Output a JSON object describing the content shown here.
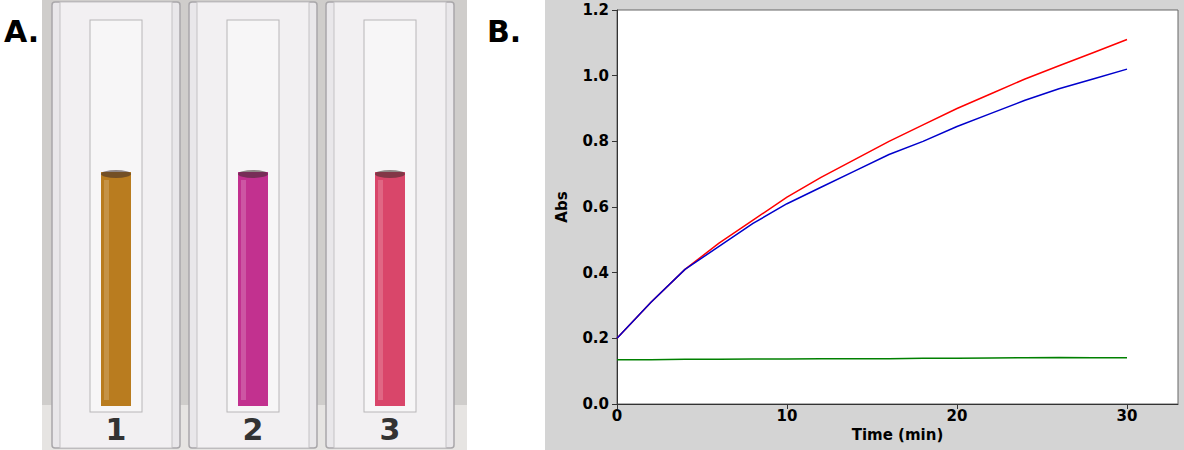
{
  "figure": {
    "panel_a": {
      "letter": "A.",
      "cuvettes": [
        {
          "label": "1",
          "color": "#b97c1f"
        },
        {
          "label": "2",
          "color": "#c2318f"
        },
        {
          "label": "3",
          "color": "#d9466a"
        }
      ]
    },
    "panel_b": {
      "letter": "B."
    }
  },
  "chart_data": {
    "type": "line",
    "x_label": "Time (min)",
    "y_label": "Abs",
    "x": [
      0,
      2,
      4,
      6,
      8,
      10,
      12,
      14,
      16,
      18,
      20,
      22,
      24,
      26,
      28,
      30
    ],
    "series": [
      {
        "color": "#ff0000",
        "values": [
          0.2,
          0.31,
          0.41,
          0.49,
          0.56,
          0.63,
          0.69,
          0.745,
          0.8,
          0.85,
          0.9,
          0.945,
          0.99,
          1.03,
          1.07,
          1.11
        ]
      },
      {
        "color": "#0000cc",
        "values": [
          0.2,
          0.31,
          0.41,
          0.48,
          0.55,
          0.61,
          0.66,
          0.71,
          0.76,
          0.8,
          0.845,
          0.885,
          0.925,
          0.96,
          0.99,
          1.02
        ]
      },
      {
        "color": "#008000",
        "values": [
          0.135,
          0.135,
          0.136,
          0.136,
          0.137,
          0.137,
          0.138,
          0.138,
          0.138,
          0.139,
          0.139,
          0.14,
          0.141,
          0.142,
          0.141,
          0.141
        ]
      }
    ],
    "xlim": [
      0,
      33
    ],
    "xticks": [
      0,
      10,
      20,
      30
    ],
    "ylim": [
      0,
      1.2
    ],
    "yticks": [
      {
        "value": 0,
        "label": "0.0"
      },
      0.2,
      0.4,
      0.6,
      0.8,
      {
        "value": 1,
        "label": "1.0"
      },
      1.2
    ],
    "grid": false
  }
}
